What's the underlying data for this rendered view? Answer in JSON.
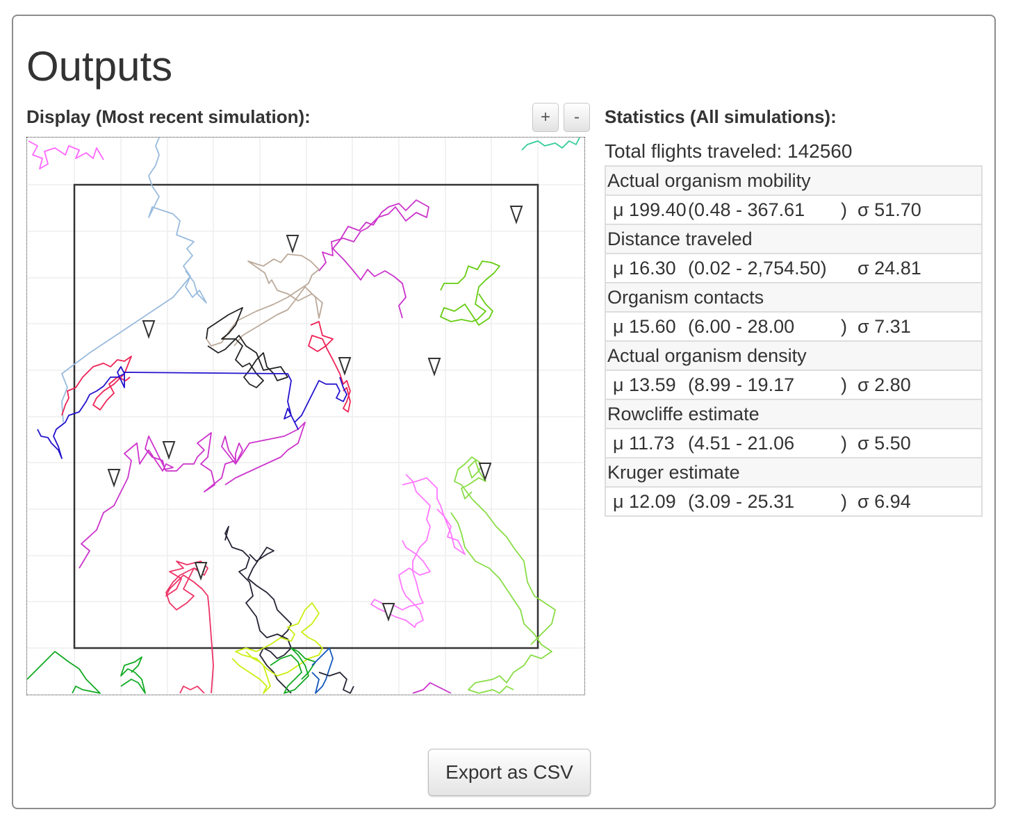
{
  "title": "Outputs",
  "display": {
    "label": "Display (Most recent simulation):",
    "zoom_in_label": "+",
    "zoom_out_label": "-"
  },
  "statistics": {
    "label": "Statistics (All simulations):",
    "total_flights": "Total flights traveled: 142560",
    "rows": [
      {
        "name": "Actual organism mobility",
        "mu": "μ 199.40",
        "range": "(0.48 - 367.61",
        "close": ")",
        "sigma": "σ 51.70"
      },
      {
        "name": "Distance traveled",
        "mu": "μ 16.30",
        "range": "(0.02 - 2,754.50)",
        "close": "",
        "sigma": "σ 24.81"
      },
      {
        "name": "Organism contacts",
        "mu": "μ 15.60",
        "range": "(6.00 - 28.00",
        "close": ")",
        "sigma": "σ 7.31"
      },
      {
        "name": "Actual organism density",
        "mu": "μ 13.59",
        "range": "(8.99 - 19.17",
        "close": ")",
        "sigma": "σ 2.80"
      },
      {
        "name": "Rowcliffe estimate",
        "mu": "μ 11.73",
        "range": "(4.51 - 21.06",
        "close": ")",
        "sigma": "σ 5.50"
      },
      {
        "name": "Kruger estimate",
        "mu": "μ 12.09",
        "range": "(3.09 - 25.31",
        "close": ")",
        "sigma": "σ 6.94"
      }
    ]
  },
  "export_label": "Export as CSV",
  "colors": {
    "border": "#8c8c8c",
    "text": "#333333",
    "grid": "#eeeeee",
    "paths": [
      "#ff66ff",
      "#99bbdd",
      "#cc33cc",
      "#bba999",
      "#66cc11",
      "#222222",
      "#ee2255",
      "#2211cc",
      "#ff77ff",
      "#88dd44",
      "#222233",
      "#ee3366",
      "#ccee11",
      "#11aa22",
      "#1155bb",
      "#33cc99",
      "#44bb55"
    ]
  }
}
